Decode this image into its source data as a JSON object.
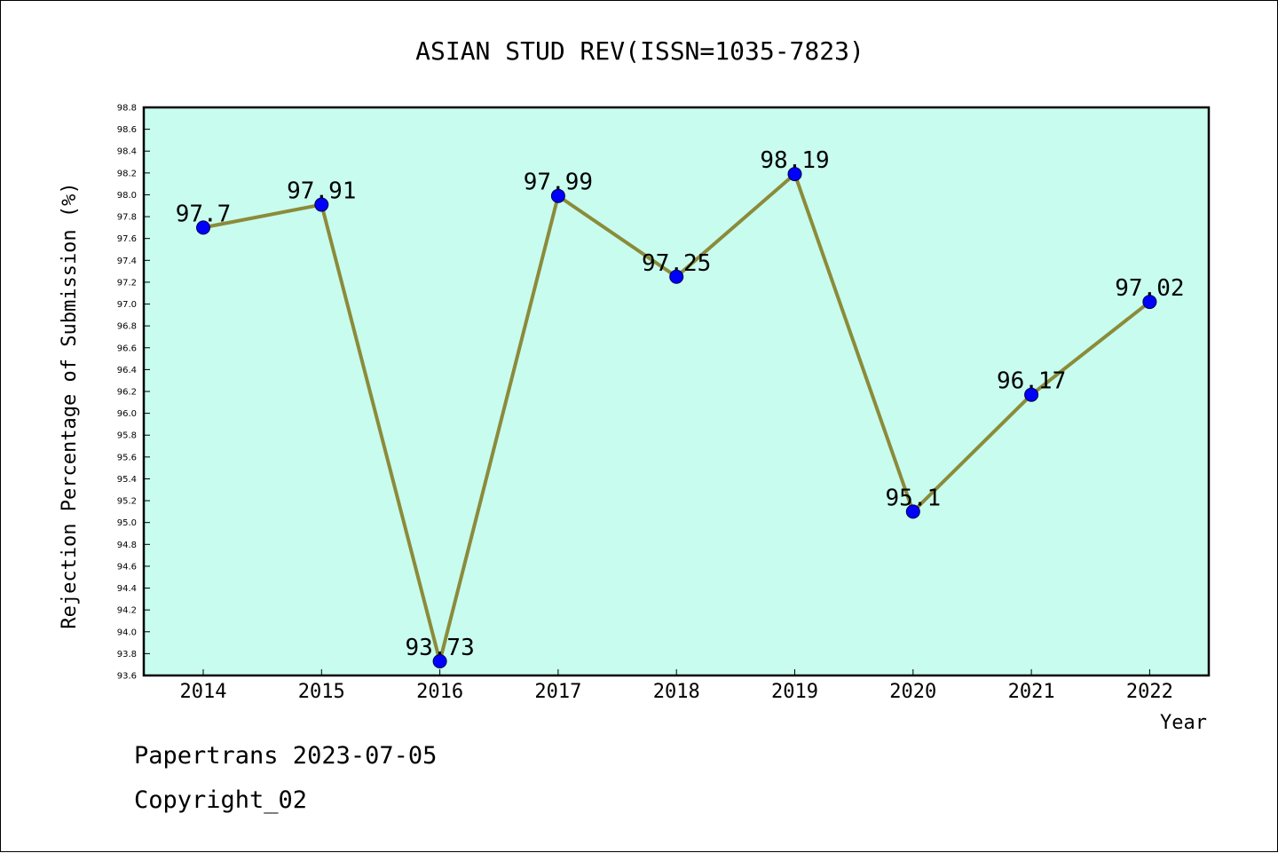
{
  "chart_data": {
    "type": "line",
    "title": "ASIAN STUD REV(ISSN=1035-7823)",
    "xlabel": "Year",
    "ylabel": "Rejection Percentage of Submission (%)",
    "categories": [
      "2014",
      "2015",
      "2016",
      "2017",
      "2018",
      "2019",
      "2020",
      "2021",
      "2022"
    ],
    "values": [
      97.7,
      97.91,
      93.73,
      97.99,
      97.25,
      98.19,
      95.1,
      96.17,
      97.02
    ],
    "data_labels": [
      "97.7",
      "97.91",
      "93.73",
      "97.99",
      "97.25",
      "98.19",
      "95.1",
      "96.17",
      "97.02"
    ],
    "ylim": [
      93.6,
      98.8
    ],
    "yticks": [
      "93.6",
      "93.8",
      "94.0",
      "94.2",
      "94.4",
      "94.6",
      "94.8",
      "95.0",
      "95.2",
      "95.4",
      "95.6",
      "95.8",
      "96.0",
      "96.2",
      "96.4",
      "96.6",
      "96.8",
      "97.0",
      "97.2",
      "97.4",
      "97.6",
      "97.8",
      "98.0",
      "98.2",
      "98.4",
      "98.6",
      "98.8"
    ],
    "grid": false,
    "colors": {
      "plot_background": "#c8fcee",
      "line": "#8b8b3a",
      "marker": "#0000ff"
    }
  },
  "footer": {
    "line1": "Papertrans 2023-07-05",
    "line2": "Copyright_02"
  }
}
